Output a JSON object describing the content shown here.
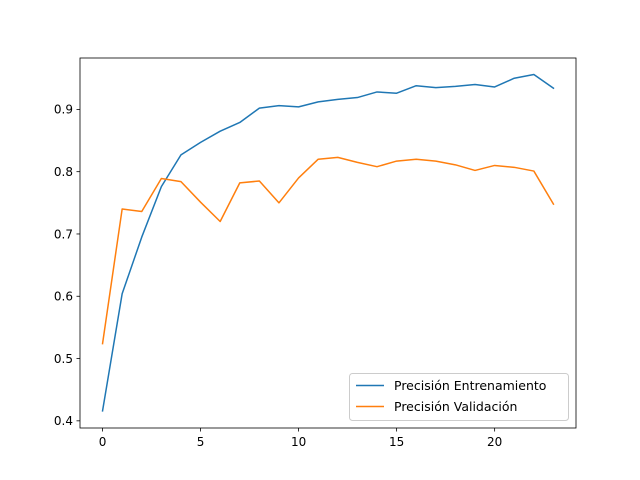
{
  "chart_data": {
    "type": "line",
    "title": "",
    "xlabel": "",
    "ylabel": "",
    "xlim": [
      -1.15,
      24.15
    ],
    "ylim": [
      0.3885,
      0.9825
    ],
    "xticks": [
      0,
      5,
      10,
      15,
      20
    ],
    "yticks": [
      0.4,
      0.5,
      0.6,
      0.7,
      0.8,
      0.9
    ],
    "xtick_labels": [
      "0",
      "5",
      "10",
      "15",
      "20"
    ],
    "ytick_labels": [
      "0.4",
      "0.5",
      "0.6",
      "0.7",
      "0.8",
      "0.9"
    ],
    "grid": false,
    "legend_position": "lower-right",
    "x": [
      0,
      1,
      2,
      3,
      4,
      5,
      6,
      7,
      8,
      9,
      10,
      11,
      12,
      13,
      14,
      15,
      16,
      17,
      18,
      19,
      20,
      21,
      22,
      23
    ],
    "series": [
      {
        "name": "Precisión Entrenamiento",
        "color": "#1f77b4",
        "values": [
          0.416,
          0.604,
          0.695,
          0.776,
          0.827,
          0.847,
          0.865,
          0.879,
          0.902,
          0.906,
          0.904,
          0.912,
          0.916,
          0.919,
          0.928,
          0.926,
          0.938,
          0.935,
          0.937,
          0.94,
          0.936,
          0.95,
          0.956,
          0.934
        ]
      },
      {
        "name": "Precisión Validación",
        "color": "#ff7f0e",
        "values": [
          0.524,
          0.74,
          0.736,
          0.789,
          0.784,
          0.751,
          0.72,
          0.782,
          0.785,
          0.75,
          0.79,
          0.82,
          0.823,
          0.815,
          0.808,
          0.817,
          0.82,
          0.817,
          0.811,
          0.802,
          0.81,
          0.807,
          0.801,
          0.748
        ]
      }
    ]
  }
}
